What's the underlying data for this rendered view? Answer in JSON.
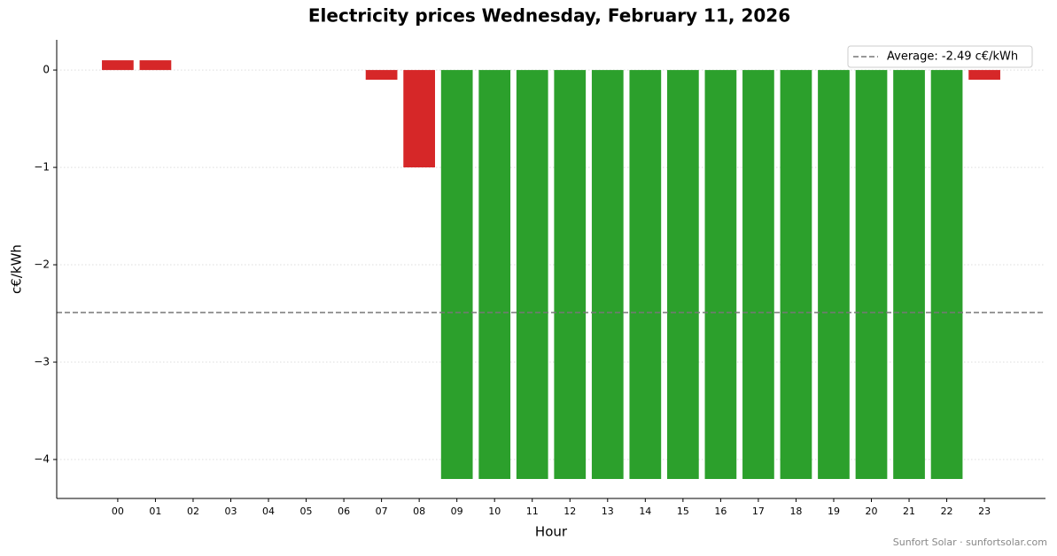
{
  "chart_data": {
    "type": "bar",
    "title": "Electricity prices Wednesday, February 11, 2026",
    "x_label": "Hour",
    "y_label": "c€/kWh",
    "categories": [
      "00",
      "01",
      "02",
      "03",
      "04",
      "05",
      "06",
      "07",
      "08",
      "09",
      "10",
      "11",
      "12",
      "13",
      "14",
      "15",
      "16",
      "17",
      "18",
      "19",
      "20",
      "21",
      "22",
      "23"
    ],
    "values": [
      0.1,
      0.1,
      0,
      0,
      0,
      0,
      0,
      -0.1,
      -1.0,
      -4.2,
      -4.2,
      -4.2,
      -4.2,
      -4.2,
      -4.2,
      -4.2,
      -4.2,
      -4.2,
      -4.2,
      -4.2,
      -4.2,
      -4.2,
      -4.2,
      -0.1
    ],
    "colors": [
      "#d62728",
      "#d62728",
      "#d62728",
      "#d62728",
      "#d62728",
      "#d62728",
      "#d62728",
      "#d62728",
      "#d62728",
      "#2ca02c",
      "#2ca02c",
      "#2ca02c",
      "#2ca02c",
      "#2ca02c",
      "#2ca02c",
      "#2ca02c",
      "#2ca02c",
      "#2ca02c",
      "#2ca02c",
      "#2ca02c",
      "#2ca02c",
      "#2ca02c",
      "#2ca02c",
      "#d62728"
    ],
    "average": {
      "value": -2.49,
      "label": "Average: -2.49 c€/kWh",
      "color": "#777777"
    },
    "ylim": [
      -4.4,
      0.31
    ],
    "yticks": [
      {
        "value": -4,
        "label": "−4"
      },
      {
        "value": -3,
        "label": "−3"
      },
      {
        "value": -2,
        "label": "−2"
      },
      {
        "value": -1,
        "label": "−1"
      },
      0
    ],
    "grid": true,
    "legend": "upper right",
    "footer": "Sunfort Solar · sunfortsolar.com"
  }
}
